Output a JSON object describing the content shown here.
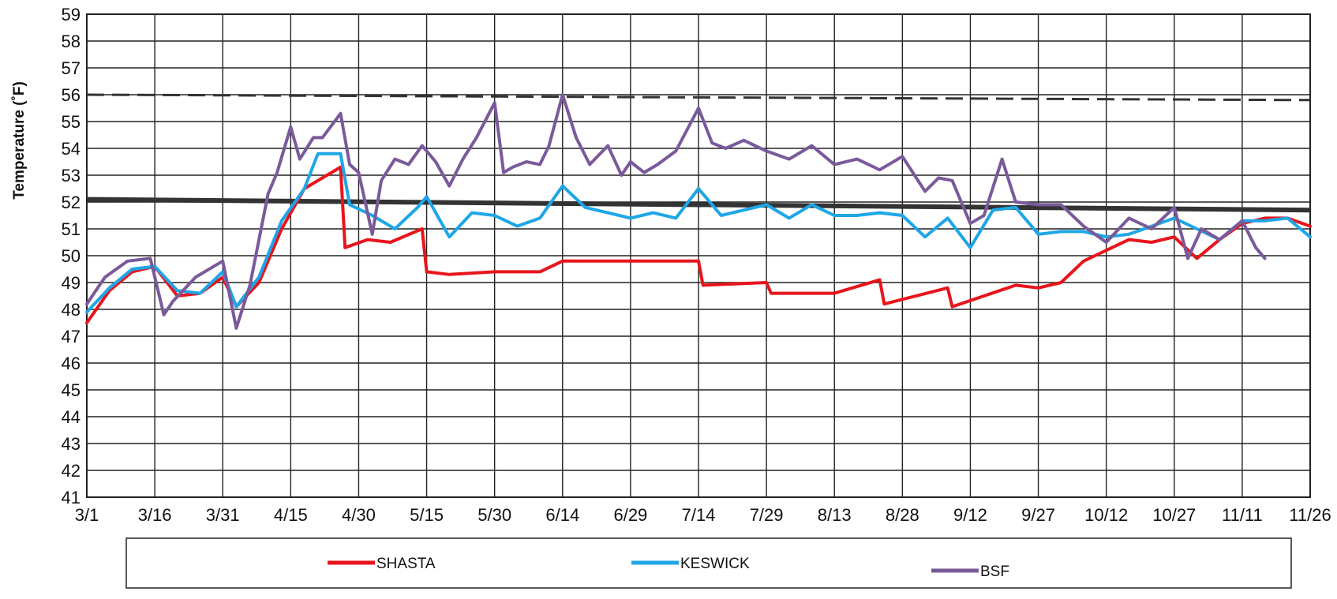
{
  "chart_data": {
    "type": "line",
    "title": "",
    "xlabel": "",
    "ylabel": "Temperature (˚F)",
    "ylim": [
      41,
      59
    ],
    "xlim": [
      "3/1",
      "11/26"
    ],
    "grid": true,
    "legend_position": "bottom",
    "y_ticks": [
      "59",
      "58",
      "57",
      "56",
      "55",
      "54",
      "53",
      "52",
      "51",
      "50",
      "49",
      "48",
      "47",
      "46",
      "45",
      "44",
      "43",
      "42",
      "41"
    ],
    "x_ticks": [
      "3/1",
      "3/16",
      "3/31",
      "4/15",
      "4/30",
      "5/15",
      "5/30",
      "6/14",
      "6/29",
      "7/14",
      "7/29",
      "8/13",
      "8/28",
      "9/12",
      "9/27",
      "10/12",
      "10/27",
      "11/11",
      "11/26"
    ],
    "reference_lines": [
      {
        "style": "dashed",
        "color": "#333333",
        "x": [
          "3/1",
          "11/26"
        ],
        "y": [
          56.0,
          55.8
        ]
      },
      {
        "style": "solid",
        "color": "#333333",
        "x": [
          "3/1",
          "11/26"
        ],
        "y": [
          52.1,
          51.7
        ]
      }
    ],
    "series": [
      {
        "name": "SHASTA",
        "color": "#e8141c",
        "x": [
          "3/1",
          "3/6",
          "3/11",
          "3/16",
          "3/21",
          "3/26",
          "3/31",
          "4/3",
          "4/8",
          "4/13",
          "4/18",
          "4/23",
          "4/26",
          "4/27",
          "5/2",
          "5/7",
          "5/14",
          "5/15",
          "5/20",
          "5/30",
          "6/9",
          "6/14",
          "6/29",
          "7/14",
          "7/15",
          "7/29",
          "7/30",
          "8/13",
          "8/23",
          "8/24",
          "9/7",
          "9/8",
          "9/22",
          "9/27",
          "10/2",
          "10/7",
          "10/12",
          "10/17",
          "10/22",
          "10/27",
          "11/1",
          "11/6",
          "11/11",
          "11/16",
          "11/21",
          "11/26"
        ],
        "y": [
          47.5,
          48.7,
          49.4,
          49.6,
          48.5,
          48.6,
          49.2,
          48.1,
          49.0,
          51.0,
          52.5,
          53.0,
          53.3,
          50.3,
          50.6,
          50.5,
          51.0,
          49.4,
          49.3,
          49.4,
          49.4,
          49.8,
          49.8,
          49.8,
          48.9,
          49.0,
          48.6,
          48.6,
          49.1,
          48.2,
          48.8,
          48.1,
          48.9,
          48.8,
          49.0,
          49.8,
          50.2,
          50.6,
          50.5,
          50.7,
          49.9,
          50.6,
          51.2,
          51.4,
          51.4,
          51.1
        ]
      },
      {
        "name": "KESWICK",
        "color": "#1ea6e6",
        "x": [
          "3/1",
          "3/6",
          "3/11",
          "3/16",
          "3/21",
          "3/26",
          "3/31",
          "4/3",
          "4/8",
          "4/13",
          "4/18",
          "4/21",
          "4/26",
          "4/28",
          "5/3",
          "5/8",
          "5/13",
          "5/15",
          "5/20",
          "5/25",
          "5/30",
          "6/4",
          "6/9",
          "6/14",
          "6/19",
          "6/24",
          "6/29",
          "7/4",
          "7/9",
          "7/14",
          "7/19",
          "7/24",
          "7/29",
          "8/3",
          "8/8",
          "8/13",
          "8/18",
          "8/23",
          "8/28",
          "9/2",
          "9/7",
          "9/12",
          "9/17",
          "9/22",
          "9/27",
          "10/2",
          "10/7",
          "10/12",
          "10/17",
          "10/22",
          "10/27",
          "11/1",
          "11/6",
          "11/11",
          "11/16",
          "11/21",
          "11/26"
        ],
        "y": [
          47.9,
          48.8,
          49.5,
          49.6,
          48.7,
          48.6,
          49.4,
          48.1,
          49.2,
          51.3,
          52.5,
          53.8,
          53.8,
          51.9,
          51.5,
          51.0,
          51.8,
          52.2,
          50.7,
          51.6,
          51.5,
          51.1,
          51.4,
          52.6,
          51.8,
          51.6,
          51.4,
          51.6,
          51.4,
          52.5,
          51.5,
          51.7,
          51.9,
          51.4,
          51.9,
          51.5,
          51.5,
          51.6,
          51.5,
          50.7,
          51.4,
          50.3,
          51.7,
          51.8,
          50.8,
          50.9,
          50.9,
          50.7,
          50.8,
          51.1,
          51.4,
          51.0,
          50.6,
          51.3,
          51.3,
          51.4,
          50.7
        ]
      },
      {
        "name": "BSF",
        "color": "#7a5a9a",
        "x": [
          "3/1",
          "3/5",
          "3/10",
          "3/15",
          "3/18",
          "3/20",
          "3/25",
          "3/31",
          "4/3",
          "4/6",
          "4/10",
          "4/12",
          "4/15",
          "4/17",
          "4/20",
          "4/22",
          "4/26",
          "4/28",
          "4/30",
          "5/3",
          "5/5",
          "5/8",
          "5/11",
          "5/14",
          "5/17",
          "5/20",
          "5/23",
          "5/26",
          "5/30",
          "6/1",
          "6/3",
          "6/6",
          "6/9",
          "6/11",
          "6/14",
          "6/17",
          "6/20",
          "6/24",
          "6/27",
          "6/29",
          "7/2",
          "7/5",
          "7/9",
          "7/14",
          "7/17",
          "7/20",
          "7/24",
          "7/29",
          "8/3",
          "8/8",
          "8/13",
          "8/18",
          "8/23",
          "8/28",
          "9/2",
          "9/5",
          "9/8",
          "9/12",
          "9/15",
          "9/19",
          "9/22",
          "9/27",
          "10/2",
          "10/7",
          "10/12",
          "10/17",
          "10/22",
          "10/27",
          "10/30",
          "11/2",
          "11/6",
          "11/11",
          "11/14",
          "11/16"
        ],
        "y": [
          48.2,
          49.2,
          49.8,
          49.9,
          47.8,
          48.3,
          49.2,
          49.8,
          47.3,
          48.9,
          52.3,
          53.1,
          54.8,
          53.6,
          54.4,
          54.4,
          55.3,
          53.4,
          53.1,
          50.8,
          52.8,
          53.6,
          53.4,
          54.1,
          53.5,
          52.6,
          53.6,
          54.4,
          55.7,
          53.1,
          53.3,
          53.5,
          53.4,
          54.1,
          56.0,
          54.4,
          53.4,
          54.1,
          53.0,
          53.5,
          53.1,
          53.4,
          53.9,
          55.5,
          54.2,
          54.0,
          54.3,
          53.9,
          53.6,
          54.1,
          53.4,
          53.6,
          53.2,
          53.7,
          52.4,
          52.9,
          52.8,
          51.2,
          51.5,
          53.6,
          52.0,
          51.9,
          51.9,
          51.1,
          50.5,
          51.4,
          51.0,
          51.8,
          49.9,
          51.0,
          50.6,
          51.3,
          50.3,
          49.9
        ]
      }
    ]
  }
}
